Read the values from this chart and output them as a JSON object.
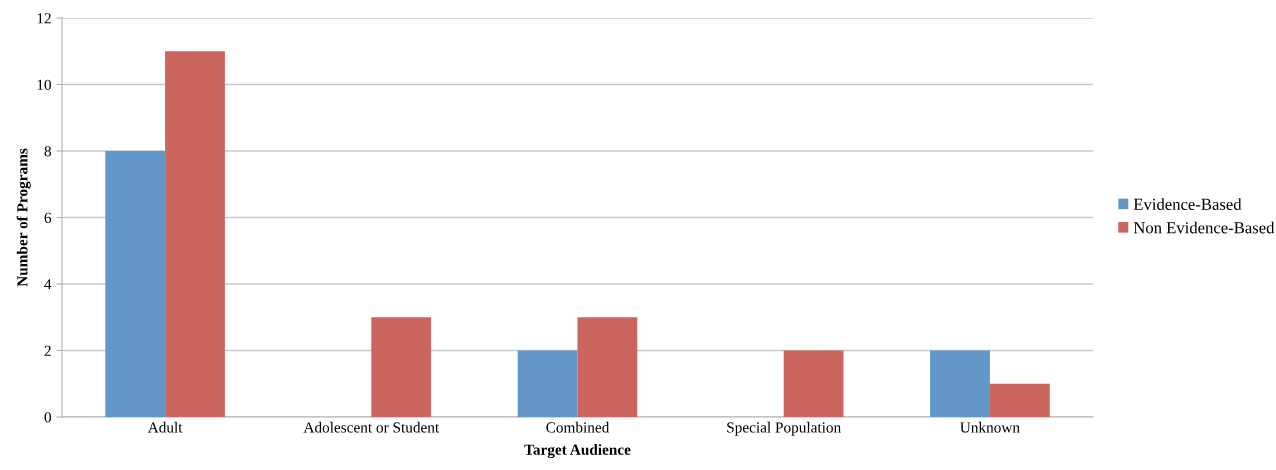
{
  "chart_data": {
    "type": "bar",
    "xlabel": "Target Audience",
    "ylabel": "Number of Programs",
    "categories": [
      "Adult",
      "Adolescent or Student",
      "Combined",
      "Special Population",
      "Unknown"
    ],
    "series": [
      {
        "name": "Evidence-Based",
        "color": "#6497c9",
        "values": [
          8,
          0,
          2,
          0,
          2
        ]
      },
      {
        "name": "Non Evidence-Based",
        "color": "#cc645f",
        "values": [
          11,
          3,
          3,
          2,
          1
        ]
      }
    ],
    "ylim": [
      0,
      12
    ],
    "yticks": [
      0,
      2,
      4,
      6,
      8,
      10,
      12
    ],
    "grid": "y",
    "legend": "right"
  }
}
